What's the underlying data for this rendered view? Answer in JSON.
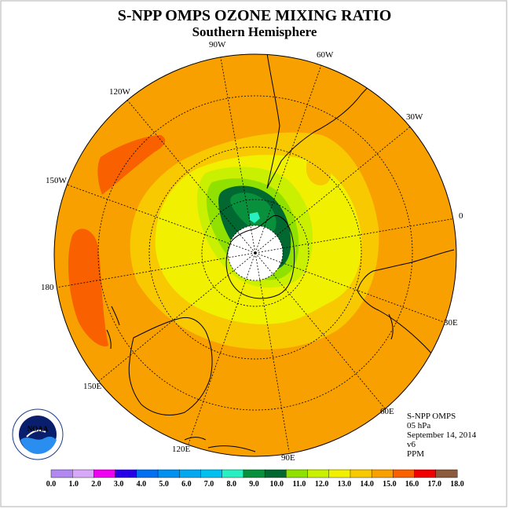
{
  "title": "S-NPP OMPS OZONE MIXING RATIO",
  "subtitle": "Southern Hemisphere",
  "longitudes": [
    {
      "name": "lon-0",
      "label": "0"
    },
    {
      "name": "lon-30w",
      "label": "30W"
    },
    {
      "name": "lon-60w",
      "label": "60W"
    },
    {
      "name": "lon-90w",
      "label": "90W"
    },
    {
      "name": "lon-120w",
      "label": "120W"
    },
    {
      "name": "lon-150w",
      "label": "150W"
    },
    {
      "name": "lon-180",
      "label": "180"
    },
    {
      "name": "lon-150e",
      "label": "150E"
    },
    {
      "name": "lon-120e",
      "label": "120E"
    },
    {
      "name": "lon-90e",
      "label": "90E"
    },
    {
      "name": "lon-60e",
      "label": "60E"
    },
    {
      "name": "lon-30e",
      "label": "30E"
    }
  ],
  "info": {
    "instrument": "S-NPP OMPS",
    "level": "05 hPa",
    "date": "September 14, 2014",
    "version": "v6",
    "units": "PPM"
  },
  "logo": {
    "text": "NOAA"
  },
  "colorbar": {
    "colors": [
      "#b088f0",
      "#d8a8f8",
      "#f000f0",
      "#2800e8",
      "#0070f0",
      "#0090f0",
      "#00a8f0",
      "#00c0f0",
      "#28f0c0",
      "#08903c",
      "#006830",
      "#90e000",
      "#c8f000",
      "#f0f000",
      "#f8c800",
      "#f8a000",
      "#f86000",
      "#f00000",
      "#8c5a3c"
    ],
    "labels": [
      "0.0",
      "1.0",
      "2.0",
      "3.0",
      "4.0",
      "5.0",
      "6.0",
      "7.0",
      "8.0",
      "9.0",
      "10.0",
      "11.0",
      "12.0",
      "13.0",
      "14.0",
      "15.0",
      "16.0",
      "17.0",
      "18.0"
    ]
  }
}
